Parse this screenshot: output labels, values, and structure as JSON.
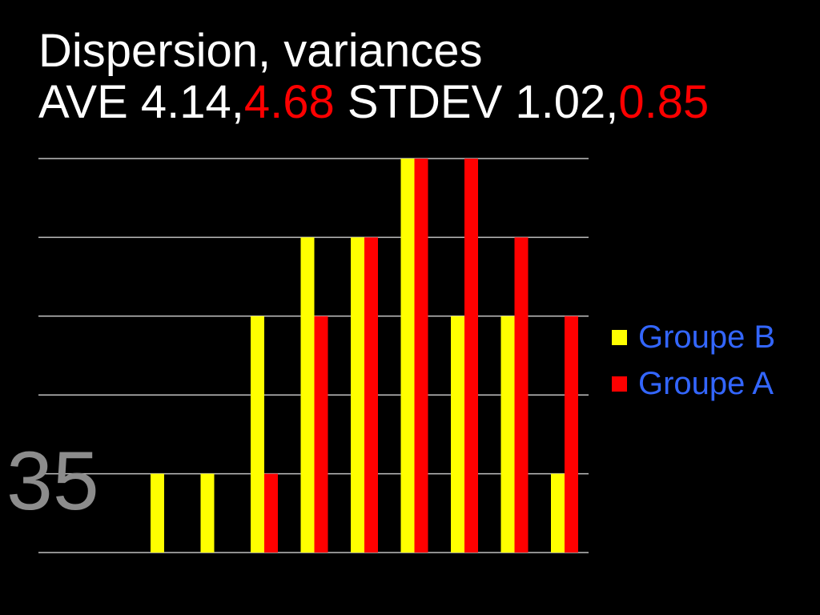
{
  "title": {
    "line1": "Dispersion, variances",
    "line2_prefix": "AVE 4.14,",
    "line2_red1": "4.68",
    "line2_mid": " STDEV 1.02,",
    "line2_red2": "0.85"
  },
  "slide_number": "35",
  "colors": {
    "background": "#000000",
    "groupe_b": "#ffff00",
    "groupe_a": "#ff0000",
    "gridline": "#bfbfbf",
    "legend_text": "#3366ff",
    "title_text": "#ffffff",
    "title_highlight": "#ff0000"
  },
  "chart_data": {
    "type": "bar",
    "title": "",
    "xlabel": "",
    "ylabel": "",
    "categories": [
      "",
      "",
      "",
      "",
      "",
      "",
      "",
      "",
      ""
    ],
    "ylim": [
      0,
      5
    ],
    "grid": true,
    "legend_position": "right",
    "series": [
      {
        "name": "Groupe B",
        "color": "#ffff00",
        "values": [
          1,
          1,
          3,
          4,
          4,
          5,
          3,
          3,
          1
        ]
      },
      {
        "name": "Groupe A",
        "color": "#ff0000",
        "values": [
          0,
          0,
          1,
          3,
          4,
          5,
          5,
          4,
          3
        ]
      }
    ]
  }
}
